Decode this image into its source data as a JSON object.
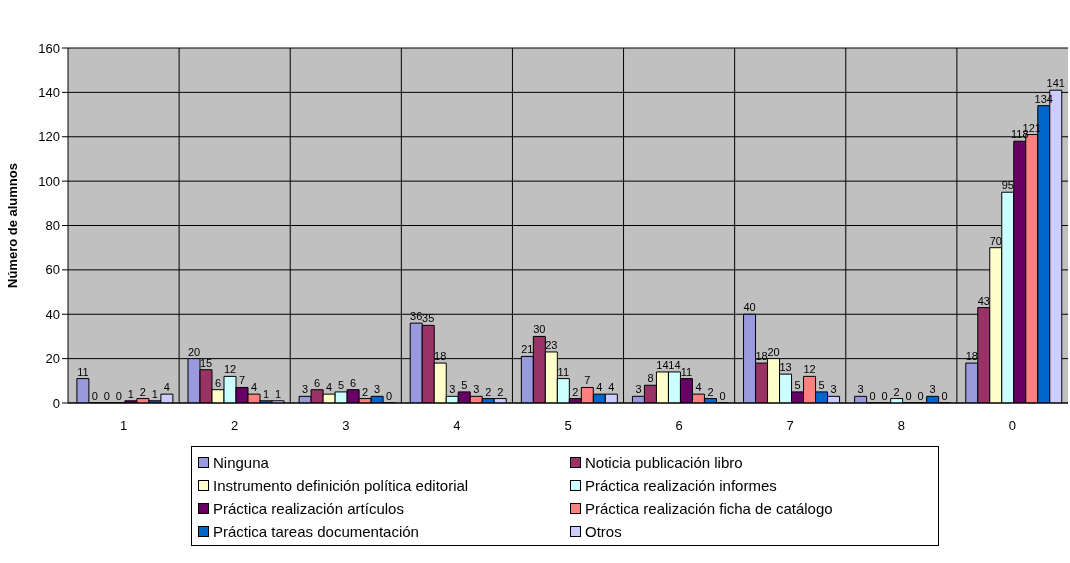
{
  "chart_data": {
    "type": "bar",
    "ylabel": "Número de alumnos",
    "categories": [
      "1",
      "2",
      "3",
      "4",
      "5",
      "6",
      "7",
      "8",
      "0"
    ],
    "series": [
      {
        "name": "Ninguna",
        "color": "#9999dd",
        "values": [
          11,
          20,
          3,
          36,
          21,
          3,
          40,
          3,
          18
        ]
      },
      {
        "name": "Noticia publicación libro",
        "color": "#993366",
        "values": [
          0,
          15,
          6,
          35,
          30,
          8,
          18,
          0,
          43
        ]
      },
      {
        "name": "Instrumento definición política editorial",
        "color": "#ffffcc",
        "values": [
          0,
          6,
          4,
          18,
          23,
          14,
          20,
          0,
          70
        ]
      },
      {
        "name": "Práctica realización informes",
        "color": "#ccffff",
        "values": [
          0,
          12,
          5,
          3,
          11,
          14,
          13,
          2,
          95
        ]
      },
      {
        "name": "Práctica realización artículos",
        "color": "#660066",
        "values": [
          1,
          7,
          6,
          5,
          2,
          11,
          5,
          0,
          118
        ]
      },
      {
        "name": "Práctica realización ficha de catálogo",
        "color": "#ff8080",
        "values": [
          2,
          4,
          2,
          3,
          7,
          4,
          12,
          0,
          121
        ]
      },
      {
        "name": "Práctica tareas documentación",
        "color": "#0066cc",
        "values": [
          1,
          1,
          3,
          2,
          4,
          2,
          5,
          3,
          134
        ]
      },
      {
        "name": "Otros",
        "color": "#ccccff",
        "values": [
          4,
          1,
          0,
          2,
          4,
          0,
          3,
          0,
          141
        ]
      }
    ],
    "ylim": [
      0,
      160
    ],
    "yticks": [
      0,
      20,
      40,
      60,
      80,
      100,
      120,
      140,
      160
    ],
    "grid": true,
    "legend": "bottom",
    "data_labels": true
  }
}
